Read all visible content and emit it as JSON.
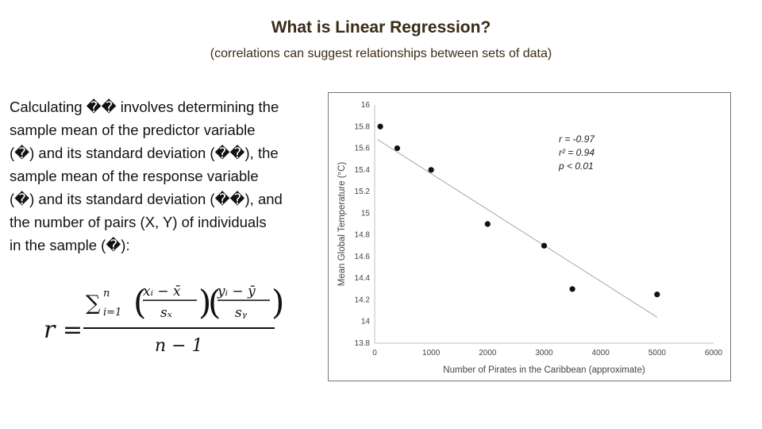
{
  "slide": {
    "title": "What is Linear Regression?",
    "subtitle": "(correlations can suggest relationships between sets of data)",
    "body_lines": [
      "Calculating �� involves determining the",
      "sample mean of the predictor variable",
      "(�) and its standard deviation (��), the",
      "sample mean of the response variable",
      "(�) and its standard deviation (��), and",
      "the number of pairs (X, Y) of individuals",
      "in the sample (�):"
    ]
  },
  "formula": {
    "lhs": "r =",
    "sum_symbol": "∑",
    "sum_upper": "n",
    "sum_lower": "i=1",
    "term1_num": "xᵢ − x̄",
    "term1_den": "sₓ",
    "term2_num": "yᵢ − ȳ",
    "term2_den": "sᵧ",
    "denominator": "n − 1"
  },
  "chart_data": {
    "type": "scatter",
    "xlabel": "Number of Pirates in the Caribbean (approximate)",
    "ylabel": "Mean Global Temperature (°C)",
    "xlim": [
      0,
      6000
    ],
    "ylim": [
      13.8,
      16
    ],
    "x_ticks": [
      0,
      1000,
      2000,
      3000,
      4000,
      5000,
      6000
    ],
    "y_ticks": [
      13.8,
      14,
      14.2,
      14.4,
      14.6,
      14.8,
      15,
      15.2,
      15.4,
      15.6,
      15.8,
      16
    ],
    "y_tick_labels": [
      "13.8",
      "14",
      "14.2",
      "14.4",
      "14.6",
      "14.8",
      "15",
      "15.2",
      "15.4",
      "15.6",
      "15.8",
      "16"
    ],
    "points": [
      {
        "x": 100,
        "y": 15.8
      },
      {
        "x": 400,
        "y": 15.6
      },
      {
        "x": 1000,
        "y": 15.4
      },
      {
        "x": 2000,
        "y": 14.9
      },
      {
        "x": 3000,
        "y": 14.7
      },
      {
        "x": 3500,
        "y": 14.3
      },
      {
        "x": 5000,
        "y": 14.25
      }
    ],
    "trendline": {
      "x": [
        50,
        5000
      ],
      "y": [
        15.68,
        14.04
      ]
    },
    "annotations": [
      "r = -0.97",
      "r² = 0.94",
      "p < 0.01"
    ],
    "grid": false,
    "colors": {
      "points": "#111111",
      "trendline": "#999999",
      "axis": "#bfbfbf"
    }
  }
}
